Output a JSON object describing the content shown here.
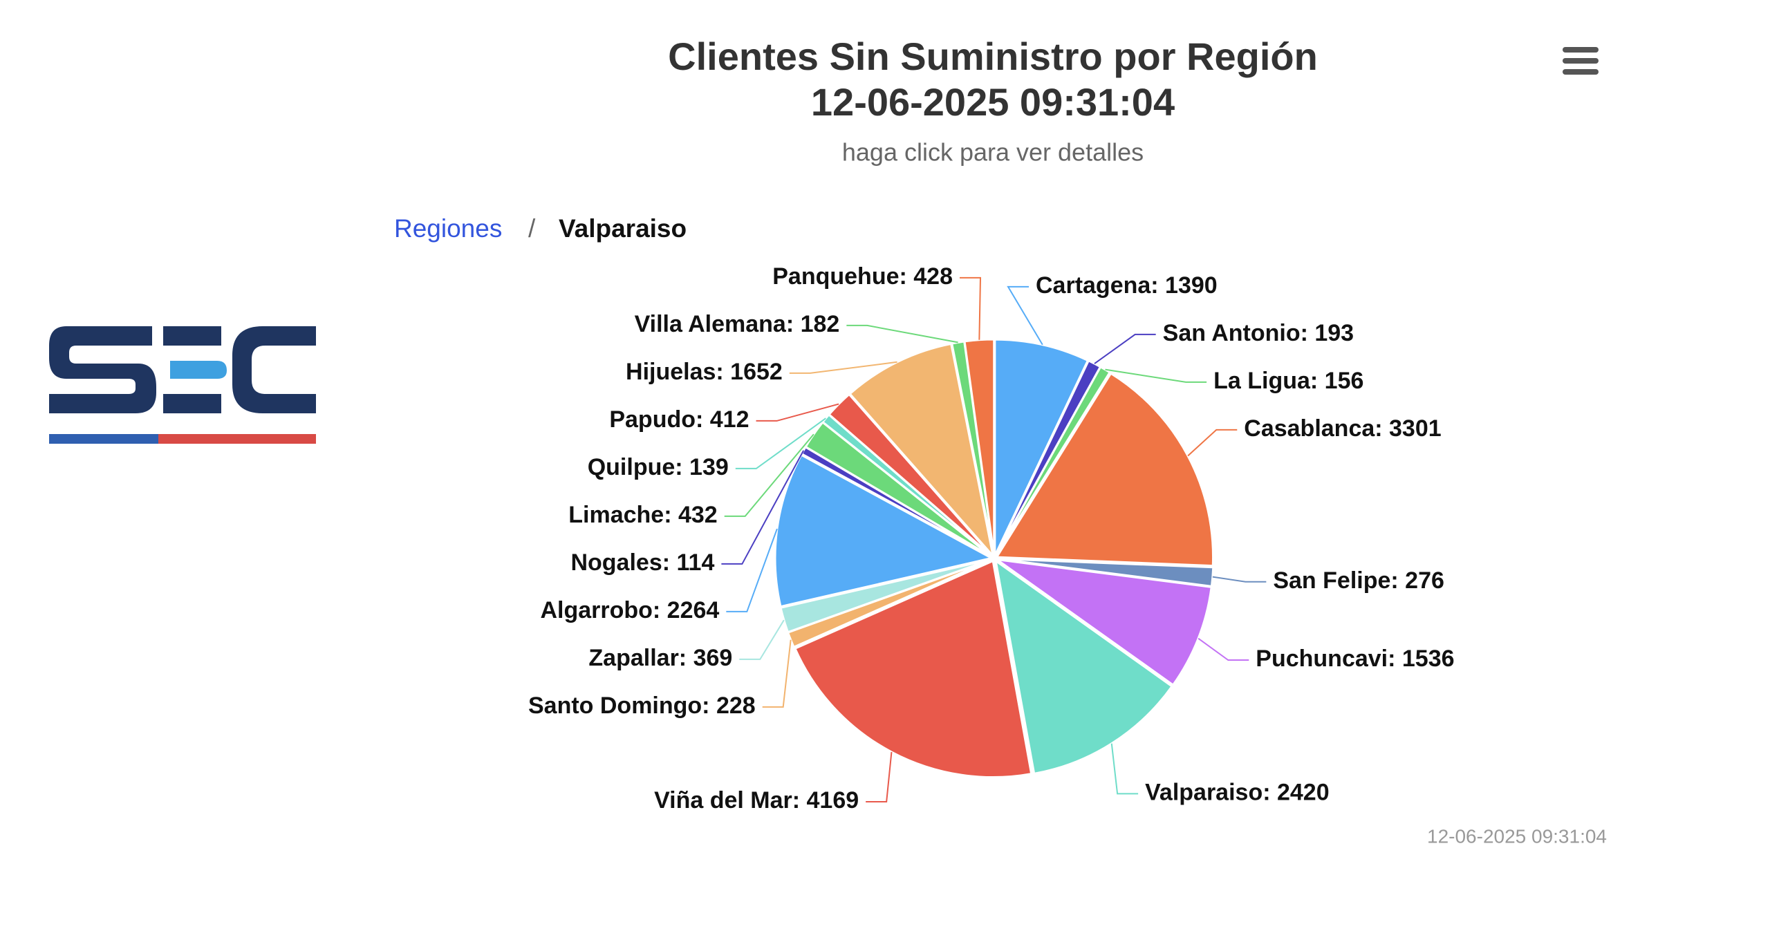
{
  "header": {
    "title": "Clientes Sin Suministro por Región",
    "title_date": "12-06-2025 09:31:04",
    "subtitle": "haga click para ver detalles"
  },
  "breadcrumb": {
    "parent": "Regiones",
    "separator": "/",
    "current": "Valparaiso"
  },
  "credits": "12-06-2025 09:31:04",
  "chart_data": {
    "type": "pie",
    "categories": [
      "Cartagena",
      "San Antonio",
      "La Ligua",
      "Casablanca",
      "San Felipe",
      "Puchuncavi",
      "Valparaiso",
      "Viña del Mar",
      "Santo Domingo",
      "Zapallar",
      "Algarrobo",
      "Nogales",
      "Limache",
      "Quilpue",
      "Papudo",
      "Hijuelas",
      "Villa Alemana",
      "Panquehue"
    ],
    "values": [
      1390,
      193,
      156,
      3301,
      276,
      1536,
      2420,
      4169,
      228,
      369,
      2264,
      114,
      432,
      139,
      412,
      1652,
      182,
      428
    ],
    "value_labels": [
      "Cartagena: 1390",
      "San Antonio: 193",
      "La Ligua: 156",
      "Casablanca: 3301",
      "San Felipe: 276",
      "Puchuncavi: 1536",
      "Valparaiso: 2420",
      "Viña del Mar: 4169",
      "Santo Domingo: 228",
      "Zapallar: 369",
      "Algarrobo: 2264",
      "Nogales: 114",
      "Limache: 432",
      "Quilpue: 139",
      "Papudo: 412",
      "Hijuelas: 1652",
      "Villa Alemana: 182",
      "Panquehue: 428"
    ],
    "colors": [
      "#56acf7",
      "#4b3fc2",
      "#6cd97a",
      "#ef7545",
      "#6c8ebf",
      "#c372f5",
      "#6fddc9",
      "#e8594b",
      "#f2b36e",
      "#a8e6e0",
      "#56acf7",
      "#4b3fc2",
      "#6cd97a",
      "#6fddc9",
      "#e8594b",
      "#f2b671",
      "#6cd97a",
      "#ef7545"
    ]
  }
}
